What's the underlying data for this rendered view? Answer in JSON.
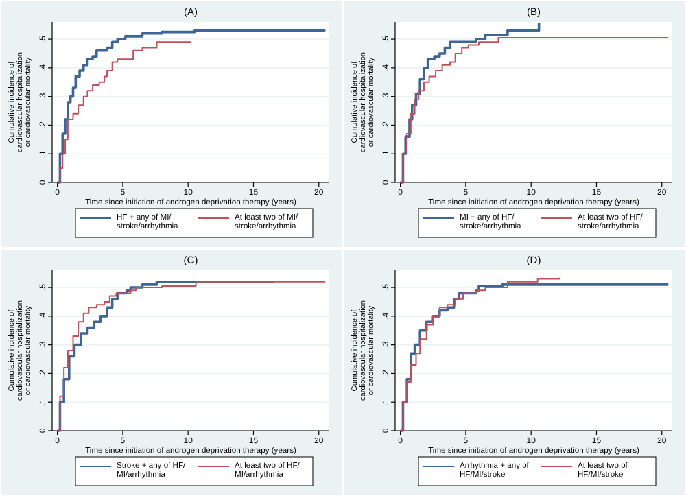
{
  "chart_data": [
    {
      "type": "step",
      "title": "(A)",
      "xlabel": "Time since initiation of androgen deprivation therapy (years)",
      "ylabel": "Cumulative incidence of cardiovascular hospitalization or cardiovascular mortality",
      "xlim": [
        -0.4,
        20.8
      ],
      "xticks": [
        0,
        5,
        10,
        15,
        20
      ],
      "ylim": [
        0,
        0.56
      ],
      "yticks": [
        {
          "value": 0,
          "label": "0"
        },
        {
          "value": 0.1,
          "label": ".1"
        },
        {
          "value": 0.2,
          "label": ".2"
        },
        {
          "value": 0.3,
          "label": ".3"
        },
        {
          "value": 0.4,
          "label": ".4"
        },
        {
          "value": 0.5,
          "label": ".5"
        }
      ],
      "grid": "y",
      "legend": "bottom",
      "line_style": "solid",
      "series": [
        {
          "name": "HF + any of MI/ stroke/arrhythmia",
          "color": "#3f6597",
          "x": [
            0,
            0.2,
            0.4,
            0.6,
            0.8,
            1,
            1.2,
            1.4,
            1.7,
            2,
            2.3,
            2.7,
            3,
            3.8,
            4.2,
            4.6,
            5.2,
            6.5,
            8,
            10.5,
            20.5
          ],
          "values": [
            0,
            0.1,
            0.17,
            0.22,
            0.28,
            0.3,
            0.33,
            0.37,
            0.39,
            0.41,
            0.43,
            0.44,
            0.46,
            0.47,
            0.49,
            0.5,
            0.51,
            0.52,
            0.525,
            0.53,
            0.53
          ]
        },
        {
          "name": "At least two of MI/ stroke/arrhythmia",
          "color": "#c0505a",
          "x": [
            0,
            0.2,
            0.4,
            0.6,
            0.8,
            1.2,
            1.6,
            2,
            2.3,
            2.7,
            3.2,
            3.6,
            3.8,
            4.2,
            4.6,
            5.8,
            6.5,
            7.6,
            10.2
          ],
          "values": [
            0,
            0.05,
            0.1,
            0.15,
            0.22,
            0.24,
            0.27,
            0.3,
            0.32,
            0.34,
            0.35,
            0.37,
            0.39,
            0.42,
            0.43,
            0.46,
            0.47,
            0.49,
            0.49
          ]
        }
      ]
    },
    {
      "type": "step",
      "title": "(B)",
      "xlabel": "Time since initiation of androgen deprivation therapy (years)",
      "ylabel": "Cumulative incidence of cardiovascular hospitalization or cardiovascular mortality",
      "xlim": [
        -0.4,
        20.8
      ],
      "xticks": [
        0,
        5,
        10,
        15,
        20
      ],
      "ylim": [
        0,
        0.56
      ],
      "yticks": [
        {
          "value": 0,
          "label": "0"
        },
        {
          "value": 0.1,
          "label": ".1"
        },
        {
          "value": 0.2,
          "label": ".2"
        },
        {
          "value": 0.3,
          "label": ".3"
        },
        {
          "value": 0.4,
          "label": ".4"
        },
        {
          "value": 0.5,
          "label": ".5"
        }
      ],
      "grid": "y",
      "legend": "bottom",
      "line_style": "solid",
      "series": [
        {
          "name": "MI + any of HF/ stroke/arrhythmia",
          "color": "#3f6597",
          "x": [
            0,
            0.2,
            0.4,
            0.7,
            0.9,
            1.2,
            1.5,
            1.8,
            2.1,
            2.6,
            3,
            3.4,
            3.8,
            4.3,
            5.8,
            6.5,
            8.2,
            10.6
          ],
          "values": [
            0,
            0.1,
            0.16,
            0.22,
            0.27,
            0.31,
            0.36,
            0.4,
            0.43,
            0.44,
            0.45,
            0.47,
            0.49,
            0.49,
            0.5,
            0.515,
            0.53,
            0.555
          ]
        },
        {
          "name": "At least two of HF/ stroke/arrhythmia",
          "color": "#c0505a",
          "x": [
            0,
            0.2,
            0.5,
            0.8,
            1.1,
            1.4,
            1.8,
            2.2,
            2.7,
            3.2,
            3.8,
            4.2,
            4.7,
            5.2,
            6,
            7.5,
            20.5
          ],
          "values": [
            0,
            0.1,
            0.17,
            0.24,
            0.29,
            0.32,
            0.35,
            0.37,
            0.39,
            0.41,
            0.42,
            0.45,
            0.47,
            0.48,
            0.49,
            0.505,
            0.505
          ]
        }
      ]
    },
    {
      "type": "step",
      "title": "(C)",
      "xlabel": "Time since initiation of androgen deprivation therapy (years)",
      "ylabel": "Cumulative incidence of cardiovascular hospitalization or cardiovascular mortality",
      "xlim": [
        -0.4,
        20.8
      ],
      "xticks": [
        0,
        5,
        10,
        15,
        20
      ],
      "ylim": [
        0,
        0.56
      ],
      "yticks": [
        {
          "value": 0,
          "label": "0"
        },
        {
          "value": 0.1,
          "label": ".1"
        },
        {
          "value": 0.2,
          "label": ".2"
        },
        {
          "value": 0.3,
          "label": ".3"
        },
        {
          "value": 0.4,
          "label": ".4"
        },
        {
          "value": 0.5,
          "label": ".5"
        }
      ],
      "grid": "y",
      "legend": "bottom",
      "line_style": "solid",
      "series": [
        {
          "name": "Stroke + any of HF/ MI/arrhythmia",
          "color": "#3f6597",
          "x": [
            0,
            0.2,
            0.5,
            0.9,
            1.3,
            1.8,
            2.3,
            2.8,
            3.3,
            3.8,
            4.2,
            4.6,
            5.3,
            5.6,
            6.5,
            7.6,
            16.6
          ],
          "values": [
            0,
            0.1,
            0.18,
            0.26,
            0.3,
            0.34,
            0.36,
            0.38,
            0.4,
            0.43,
            0.46,
            0.48,
            0.49,
            0.5,
            0.51,
            0.52,
            0.52
          ]
        },
        {
          "name": "At least two of HF/ MI/arrhythmia",
          "color": "#c0505a",
          "x": [
            0,
            0.2,
            0.5,
            0.8,
            1.2,
            1.6,
            2,
            2.4,
            3,
            3.6,
            4,
            4.5,
            5.6,
            6,
            8,
            10.6,
            20.5
          ],
          "values": [
            0,
            0.12,
            0.22,
            0.28,
            0.33,
            0.38,
            0.41,
            0.43,
            0.44,
            0.45,
            0.47,
            0.48,
            0.49,
            0.5,
            0.505,
            0.52,
            0.52
          ]
        }
      ]
    },
    {
      "type": "step",
      "title": "(D)",
      "xlabel": "Time since initiation of androgen deprivation therapy (years)",
      "ylabel": "Cumulative incidence of cardiovascular hospitalization or cardiovascular mortality",
      "xlim": [
        -0.4,
        20.8
      ],
      "xticks": [
        0,
        5,
        10,
        15,
        20
      ],
      "ylim": [
        0,
        0.56
      ],
      "yticks": [
        {
          "value": 0,
          "label": "0"
        },
        {
          "value": 0.1,
          "label": ".1"
        },
        {
          "value": 0.2,
          "label": ".2"
        },
        {
          "value": 0.3,
          "label": ".3"
        },
        {
          "value": 0.4,
          "label": ".4"
        },
        {
          "value": 0.5,
          "label": ".5"
        }
      ],
      "grid": "y",
      "legend": "bottom",
      "line_style": "solid",
      "series": [
        {
          "name": "Arrhythmia + any of HF/MI/stroke",
          "color": "#3f6597",
          "x": [
            0,
            0.2,
            0.5,
            0.8,
            1.1,
            1.5,
            2,
            2.5,
            3,
            3.6,
            4.1,
            4.5,
            5.8,
            6,
            7.8,
            20.5
          ],
          "values": [
            0,
            0.1,
            0.18,
            0.27,
            0.3,
            0.35,
            0.38,
            0.4,
            0.42,
            0.43,
            0.46,
            0.48,
            0.49,
            0.505,
            0.51,
            0.51
          ]
        },
        {
          "name": "At least two of HF/MI/stroke",
          "color": "#c0505a",
          "x": [
            0,
            0.2,
            0.5,
            0.8,
            1.2,
            1.5,
            2,
            2.5,
            3,
            3.6,
            4.2,
            4.8,
            5.8,
            6.5,
            8.2,
            10.5,
            12.2
          ],
          "values": [
            0,
            0.1,
            0.17,
            0.23,
            0.27,
            0.32,
            0.37,
            0.4,
            0.43,
            0.44,
            0.46,
            0.48,
            0.49,
            0.5,
            0.52,
            0.53,
            0.535
          ]
        }
      ]
    }
  ]
}
